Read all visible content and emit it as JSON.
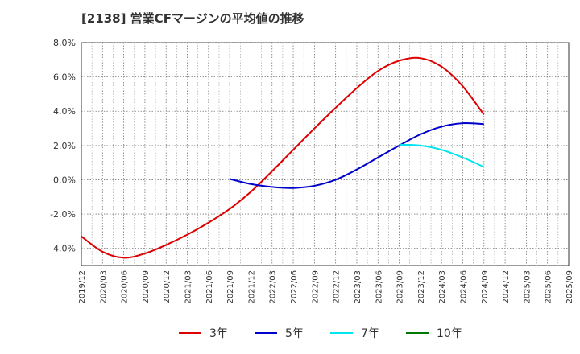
{
  "title": "[2138]  営業CFマージンの平均値の推移",
  "chart_data": {
    "type": "line",
    "title": "[2138]  営業CFマージンの平均値の推移",
    "xlabel": "",
    "ylabel": "",
    "ylim": [
      -5,
      8
    ],
    "y_ticks": [
      8,
      6,
      4,
      2,
      0,
      -2,
      -4
    ],
    "y_tick_labels": [
      "8.0%",
      "6.0%",
      "4.0%",
      "2.0%",
      "0.0%",
      "-2.0%",
      "-4.0%"
    ],
    "x_tick_labels": [
      "2019/12",
      "2020/03",
      "2020/06",
      "2020/09",
      "2020/12",
      "2021/03",
      "2021/06",
      "2021/09",
      "2021/12",
      "2022/03",
      "2022/06",
      "2022/09",
      "2022/12",
      "2023/03",
      "2023/06",
      "2023/09",
      "2023/12",
      "2024/03",
      "2024/06",
      "2024/09",
      "2024/12",
      "2025/03",
      "2025/06",
      "2025/09"
    ],
    "grid": true,
    "legend_position": "bottom",
    "series": [
      {
        "name": "3年",
        "color": "#dd0000",
        "points": [
          [
            "2019/12",
            -3.3
          ],
          [
            "2020/03",
            -4.2
          ],
          [
            "2020/06",
            -4.55
          ],
          [
            "2020/09",
            -4.3
          ],
          [
            "2020/12",
            -3.8
          ],
          [
            "2021/03",
            -3.2
          ],
          [
            "2021/06",
            -2.5
          ],
          [
            "2021/09",
            -1.7
          ],
          [
            "2021/12",
            -0.7
          ],
          [
            "2022/03",
            0.5
          ],
          [
            "2022/06",
            1.75
          ],
          [
            "2022/09",
            3.0
          ],
          [
            "2022/12",
            4.2
          ],
          [
            "2023/03",
            5.35
          ],
          [
            "2023/06",
            6.35
          ],
          [
            "2023/09",
            6.95
          ],
          [
            "2023/12",
            7.1
          ],
          [
            "2024/03",
            6.6
          ],
          [
            "2024/06",
            5.45
          ],
          [
            "2024/09",
            3.8
          ]
        ]
      },
      {
        "name": "5年",
        "color": "#0000cc",
        "points": [
          [
            "2021/09",
            0.05
          ],
          [
            "2021/12",
            -0.25
          ],
          [
            "2022/03",
            -0.42
          ],
          [
            "2022/06",
            -0.48
          ],
          [
            "2022/09",
            -0.35
          ],
          [
            "2022/12",
            0.0
          ],
          [
            "2023/03",
            0.6
          ],
          [
            "2023/06",
            1.3
          ],
          [
            "2023/09",
            2.0
          ],
          [
            "2023/12",
            2.65
          ],
          [
            "2024/03",
            3.1
          ],
          [
            "2024/06",
            3.3
          ],
          [
            "2024/09",
            3.25
          ]
        ]
      },
      {
        "name": "7年",
        "color": "#00e5ee",
        "points": [
          [
            "2023/09",
            2.05
          ],
          [
            "2023/12",
            2.0
          ],
          [
            "2024/03",
            1.75
          ],
          [
            "2024/06",
            1.3
          ],
          [
            "2024/09",
            0.75
          ]
        ]
      },
      {
        "name": "10年",
        "color": "#007700",
        "points": []
      }
    ]
  }
}
